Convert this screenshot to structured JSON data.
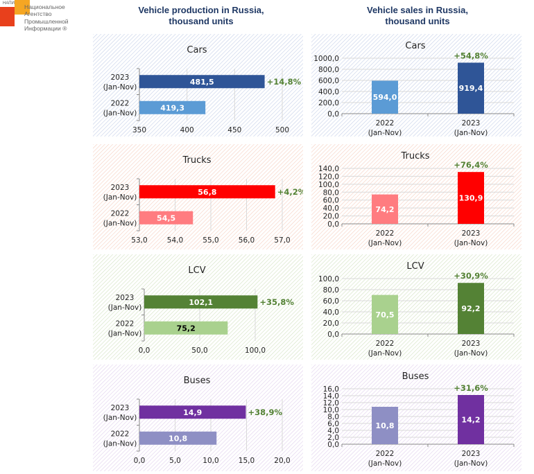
{
  "logo": {
    "tag": "НАПИ",
    "lines": [
      "Национальное",
      "Агентство",
      "Промышленной",
      "Информации ®"
    ]
  },
  "titles": {
    "production": "Vehicle production in Russia, thousand units",
    "production_line1": "Vehicle production in Russia,",
    "production_line2": "thousand units",
    "sales": "Vehicle sales in Russia, thousand units",
    "sales_line1": "Vehicle sales in Russia,",
    "sales_line2": "thousand units"
  },
  "chart_data": [
    {
      "id": "prod-cars",
      "type": "bar",
      "orientation": "horizontal",
      "title": "Cars",
      "categories": [
        "2023\n(Jan-Nov)",
        "2022\n(Jan-Nov)"
      ],
      "values": [
        481.5,
        419.3
      ],
      "value_labels": [
        "481,5",
        "419,3"
      ],
      "change_label": "+14,8%",
      "xlim": [
        350,
        500
      ],
      "ticks": [
        "350",
        "400",
        "450",
        "500"
      ],
      "tick_values": [
        350,
        400,
        450,
        500
      ],
      "colors": [
        "#2f5597",
        "#5b9bd5"
      ],
      "label_colors": [
        "#ffffff",
        "#ffffff"
      ],
      "theme": "#c9d3ea"
    },
    {
      "id": "sales-cars",
      "type": "bar",
      "orientation": "vertical",
      "title": "Cars",
      "categories": [
        "2022\n(Jan-Nov)",
        "2023\n(Jan-Nov)"
      ],
      "values": [
        594.0,
        919.4
      ],
      "value_labels": [
        "594,0",
        "919,4"
      ],
      "change_label": "+54,8%",
      "ylim": [
        0,
        1000
      ],
      "ticks": [
        "0,0",
        "200,0",
        "400,0",
        "600,0",
        "800,0",
        "1000,0"
      ],
      "tick_values": [
        0,
        200,
        400,
        600,
        800,
        1000
      ],
      "colors": [
        "#5b9bd5",
        "#2f5597"
      ],
      "label_colors": [
        "#ffffff",
        "#ffffff"
      ],
      "theme": "#c9d3ea"
    },
    {
      "id": "prod-trucks",
      "type": "bar",
      "orientation": "horizontal",
      "title": "Trucks",
      "categories": [
        "2023\n(Jan-Nov)",
        "2022\n(Jan-Nov)"
      ],
      "values": [
        56.8,
        54.5
      ],
      "value_labels": [
        "56,8",
        "54,5"
      ],
      "change_label": "+4,2%",
      "xlim": [
        53,
        57
      ],
      "ticks": [
        "53,0",
        "54,0",
        "55,0",
        "56,0",
        "57,0"
      ],
      "tick_values": [
        53,
        54,
        55,
        56,
        57
      ],
      "colors": [
        "#ff0000",
        "#ff7c80"
      ],
      "label_colors": [
        "#ffffff",
        "#ffffff"
      ],
      "theme": "#f6d2c4"
    },
    {
      "id": "sales-trucks",
      "type": "bar",
      "orientation": "vertical",
      "title": "Trucks",
      "categories": [
        "2022\n(Jan-Nov)",
        "2023\n(Jan-Nov)"
      ],
      "values": [
        74.2,
        130.9
      ],
      "value_labels": [
        "74,2",
        "130,9"
      ],
      "change_label": "+76,4%",
      "ylim": [
        0,
        140
      ],
      "ticks": [
        "0,0",
        "20,0",
        "40,0",
        "60,0",
        "80,0",
        "100,0",
        "120,0",
        "140,0"
      ],
      "tick_values": [
        0,
        20,
        40,
        60,
        80,
        100,
        120,
        140
      ],
      "colors": [
        "#ff7c80",
        "#ff0000"
      ],
      "label_colors": [
        "#ffffff",
        "#ffffff"
      ],
      "theme": "#f6d2c4"
    },
    {
      "id": "prod-lcv",
      "type": "bar",
      "orientation": "horizontal",
      "title": "LCV",
      "categories": [
        "2023\n(Jan-Nov)",
        "2022\n(Jan-Nov)"
      ],
      "values": [
        102.1,
        75.2
      ],
      "value_labels": [
        "102,1",
        "75,2"
      ],
      "change_label": "+35,8%",
      "xlim": [
        0,
        130
      ],
      "ticks": [
        "0,0",
        "50,0",
        "100,0"
      ],
      "tick_values": [
        0,
        50,
        100
      ],
      "colors": [
        "#548235",
        "#a9d18e"
      ],
      "label_colors": [
        "#ffffff",
        "#000000"
      ],
      "theme": "#d5e4c5"
    },
    {
      "id": "sales-lcv",
      "type": "bar",
      "orientation": "vertical",
      "title": "LCV",
      "categories": [
        "2022\n(Jan-Nov)",
        "2023\n(Jan-Nov)"
      ],
      "values": [
        70.5,
        92.2
      ],
      "value_labels": [
        "70,5",
        "92,2"
      ],
      "change_label": "+30,9%",
      "ylim": [
        0,
        100
      ],
      "ticks": [
        "0,0",
        "20,0",
        "40,0",
        "60,0",
        "80,0",
        "100,0"
      ],
      "tick_values": [
        0,
        20,
        40,
        60,
        80,
        100
      ],
      "colors": [
        "#a9d18e",
        "#548235"
      ],
      "label_colors": [
        "#ffffff",
        "#ffffff"
      ],
      "theme": "#d5e4c5"
    },
    {
      "id": "prod-buses",
      "type": "bar",
      "orientation": "horizontal",
      "title": "Buses",
      "categories": [
        "2023\n(Jan-Nov)",
        "2022\n(Jan-Nov)"
      ],
      "values": [
        14.9,
        10.8
      ],
      "value_labels": [
        "14,9",
        "10,8"
      ],
      "change_label": "+38,9%",
      "xlim": [
        0,
        20
      ],
      "ticks": [
        "0,0",
        "5,0",
        "10,0",
        "15,0",
        "20,0"
      ],
      "tick_values": [
        0,
        5,
        10,
        15,
        20
      ],
      "colors": [
        "#7030a0",
        "#8e8fc4"
      ],
      "label_colors": [
        "#ffffff",
        "#ffffff"
      ],
      "theme": "#e2d3ee"
    },
    {
      "id": "sales-buses",
      "type": "bar",
      "orientation": "vertical",
      "title": "Buses",
      "categories": [
        "2022\n(Jan-Nov)",
        "2023\n(Jan-Nov)"
      ],
      "values": [
        10.8,
        14.2
      ],
      "value_labels": [
        "10,8",
        "14,2"
      ],
      "change_label": "+31,6%",
      "ylim": [
        0,
        16
      ],
      "ticks": [
        "0,0",
        "2,0",
        "4,0",
        "6,0",
        "8,0",
        "10,0",
        "12,0",
        "14,0",
        "16,0"
      ],
      "tick_values": [
        0,
        2,
        4,
        6,
        8,
        10,
        12,
        14,
        16
      ],
      "colors": [
        "#8e8fc4",
        "#7030a0"
      ],
      "label_colors": [
        "#ffffff",
        "#ffffff"
      ],
      "theme": "#e2d3ee"
    }
  ]
}
